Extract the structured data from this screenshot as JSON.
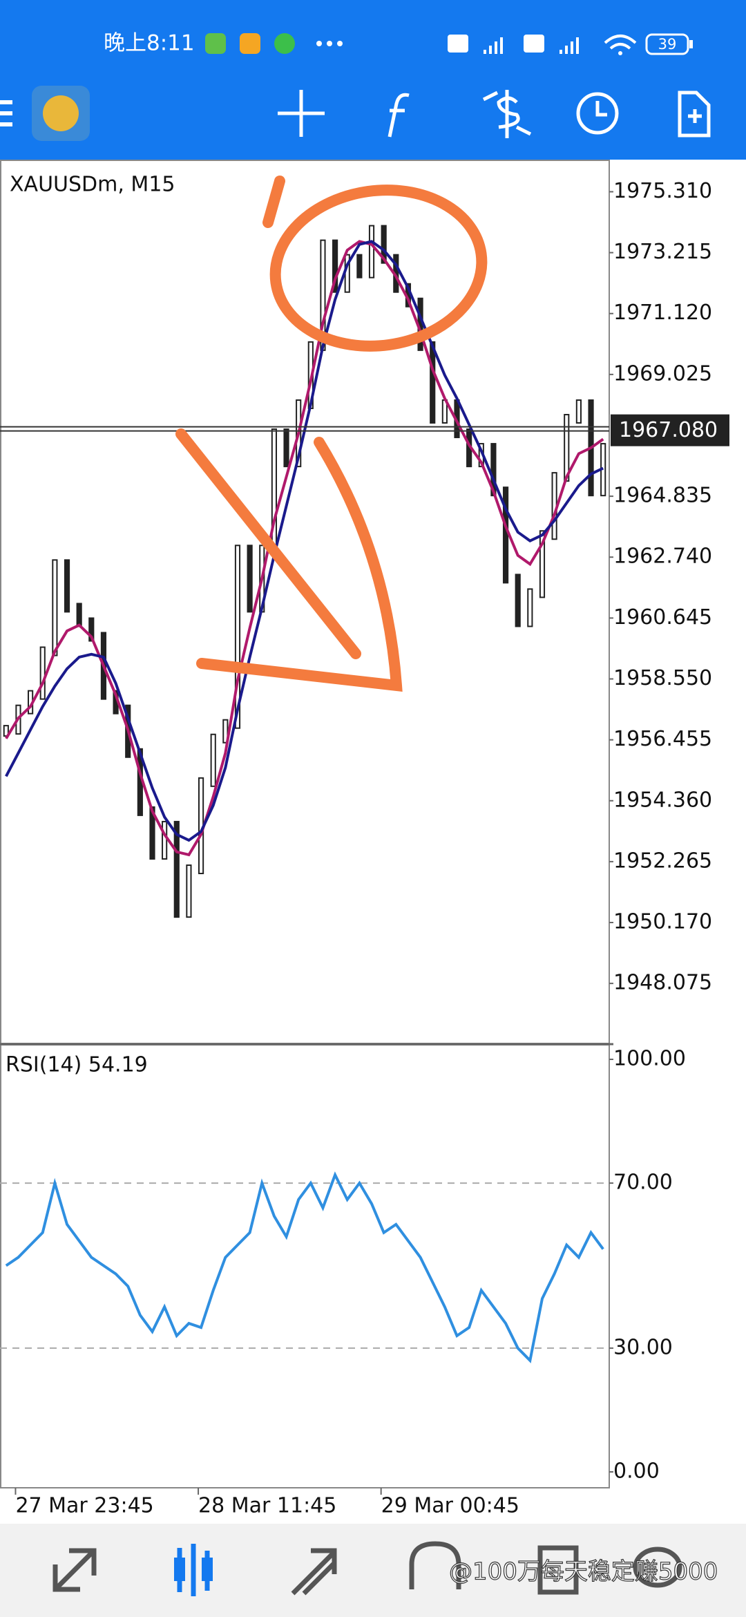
{
  "status_bar": {
    "time": "晚上8:11",
    "battery": "39"
  },
  "watermark": "@100万每天稳定赚5000",
  "chart_data": [
    {
      "type": "candlestick",
      "title": "XAUUSDm, M15",
      "color": "#222222",
      "close": [
        1956.8,
        1957.5,
        1958.0,
        1959.5,
        1962.5,
        1961.0,
        1960.5,
        1960.0,
        1958.0,
        1957.5,
        1956.0,
        1954.0,
        1952.5,
        1953.5,
        1950.5,
        1952.0,
        1955.0,
        1956.5,
        1957.0,
        1963.0,
        1961.0,
        1963.0,
        1967.0,
        1966.0,
        1968.0,
        1970.0,
        1973.5,
        1972.0,
        1973.0,
        1972.5,
        1974.0,
        1973.0,
        1972.0,
        1971.5,
        1970.0,
        1967.5,
        1968.0,
        1967.0,
        1966.0,
        1966.5,
        1965.0,
        1962.0,
        1960.5,
        1961.5,
        1963.5,
        1965.5,
        1967.5,
        1968.0,
        1965.0,
        1966.5
      ],
      "series": [
        {
          "color": "#b0196b",
          "values": [
            1956.5,
            1957.2,
            1957.6,
            1958.4,
            1959.5,
            1960.2,
            1960.4,
            1960.0,
            1959.0,
            1958.0,
            1956.8,
            1955.3,
            1954.0,
            1953.2,
            1952.6,
            1952.5,
            1953.2,
            1954.5,
            1956.0,
            1958.5,
            1960.3,
            1962.0,
            1964.0,
            1965.5,
            1967.0,
            1968.8,
            1970.8,
            1972.3,
            1973.3,
            1973.6,
            1973.5,
            1973.0,
            1972.4,
            1971.6,
            1970.5,
            1969.2,
            1968.2,
            1967.4,
            1966.6,
            1966.0,
            1965.0,
            1963.8,
            1962.8,
            1962.5,
            1963.2,
            1964.2,
            1965.5,
            1966.3,
            1966.5,
            1966.8
          ]
        },
        {
          "color": "#1a1a8c",
          "values": [
            1955.2,
            1956.0,
            1956.8,
            1957.6,
            1958.3,
            1958.9,
            1959.3,
            1959.4,
            1959.3,
            1958.4,
            1957.2,
            1956.0,
            1954.8,
            1953.8,
            1953.2,
            1953.0,
            1953.3,
            1954.2,
            1955.5,
            1957.5,
            1959.3,
            1961.0,
            1962.8,
            1964.5,
            1966.2,
            1968.0,
            1970.0,
            1971.6,
            1972.8,
            1973.5,
            1973.6,
            1973.3,
            1972.8,
            1972.0,
            1971.0,
            1970.0,
            1969.0,
            1968.2,
            1967.3,
            1966.4,
            1965.4,
            1964.4,
            1963.6,
            1963.3,
            1963.5,
            1964.0,
            1964.6,
            1965.2,
            1965.6,
            1965.8
          ]
        }
      ],
      "ylim": [
        1946.01,
        1976.415
      ],
      "yticks": [
        {
          "value": 1975.31,
          "label": "1975.310"
        },
        {
          "value": 1973.215,
          "label": "1973.215"
        },
        {
          "value": 1971.12,
          "label": "1971.120"
        },
        {
          "value": 1969.025,
          "label": "1969.025"
        },
        {
          "value": 1964.835,
          "label": "1964.835"
        },
        {
          "value": 1962.74,
          "label": "1962.740"
        },
        {
          "value": 1960.645,
          "label": "1960.645"
        },
        {
          "value": 1958.55,
          "label": "1958.550"
        },
        {
          "value": 1956.455,
          "label": "1956.455"
        },
        {
          "value": 1954.36,
          "label": "1954.360"
        },
        {
          "value": 1952.265,
          "label": "1952.265"
        },
        {
          "value": 1950.17,
          "label": "1950.170"
        },
        {
          "value": 1948.075,
          "label": "1948.075"
        }
      ],
      "current_price": {
        "value": 1967.08,
        "label": "1967.080"
      }
    },
    {
      "type": "line",
      "title": "RSI(14) 54.19",
      "categories": [
        null,
        "27 Mar 23:45",
        null,
        null,
        null,
        null,
        null,
        null,
        null,
        null,
        null,
        null,
        null,
        null,
        null,
        null,
        "28 Mar 11:45",
        null,
        null,
        null,
        null,
        null,
        null,
        null,
        null,
        null,
        null,
        null,
        null,
        null,
        null,
        "29 Mar 00:45",
        null,
        null,
        null,
        null,
        null,
        null,
        null,
        null,
        null,
        null,
        null,
        null,
        null,
        null,
        null,
        null,
        null,
        null
      ],
      "series": [
        {
          "color": "#2f8fe0",
          "values": [
            50,
            52,
            55,
            58,
            70,
            60,
            56,
            52,
            50,
            48,
            45,
            38,
            34,
            40,
            33,
            36,
            35,
            44,
            52,
            55,
            58,
            70,
            62,
            57,
            66,
            70,
            64,
            72,
            66,
            70,
            65,
            58,
            60,
            56,
            52,
            46,
            40,
            33,
            35,
            44,
            40,
            36,
            30,
            27,
            42,
            48,
            55,
            52,
            58,
            54
          ]
        }
      ],
      "ylim": [
        0,
        100
      ],
      "yticks": [
        {
          "value": 100,
          "label": "100.00"
        },
        {
          "value": 70,
          "label": "70.00"
        },
        {
          "value": 30,
          "label": "30.00"
        },
        {
          "value": 0,
          "label": "0.00"
        }
      ],
      "grid_levels": [
        1,
        2
      ]
    }
  ]
}
